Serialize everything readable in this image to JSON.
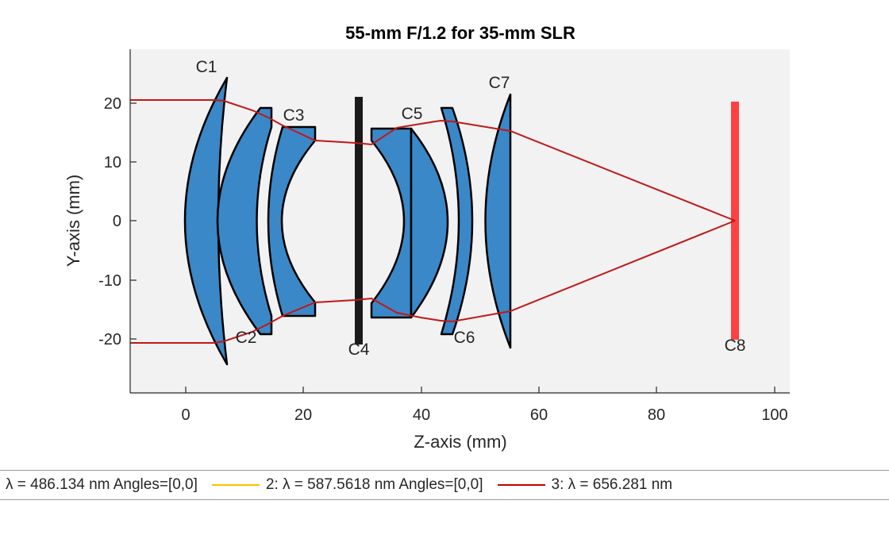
{
  "figure": {
    "title": "55-mm F/1.2 for 35-mm SLR",
    "xlabel": "Z-axis (mm)",
    "ylabel": "Y-axis (mm)",
    "xticks": [
      "0",
      "20",
      "40",
      "60",
      "80",
      "100"
    ],
    "yticks": [
      "20",
      "10",
      "0",
      "-10",
      "-20"
    ]
  },
  "surfaces": {
    "c1": "C1",
    "c2": "C2",
    "c3": "C3",
    "c4": "C4",
    "c5": "C5",
    "c6": "C6",
    "c7": "C7",
    "c8": "C8"
  },
  "legend": {
    "entry1": "λ = 486.134 nm Angles=[0,0]",
    "entry2": "2: λ = 587.5618 nm Angles=[0,0]",
    "entry3": "3: λ = 656.281 nm"
  },
  "colors": {
    "lens_fill": "#3a88c8",
    "ray": "#c01818",
    "stop": "#1a1a1a",
    "image_plane": "#ff4040",
    "axes_bg": "#f2f2f2",
    "legend_line1": "#1f77b4",
    "legend_line2": "#ffc000",
    "legend_line3": "#c00000"
  }
}
